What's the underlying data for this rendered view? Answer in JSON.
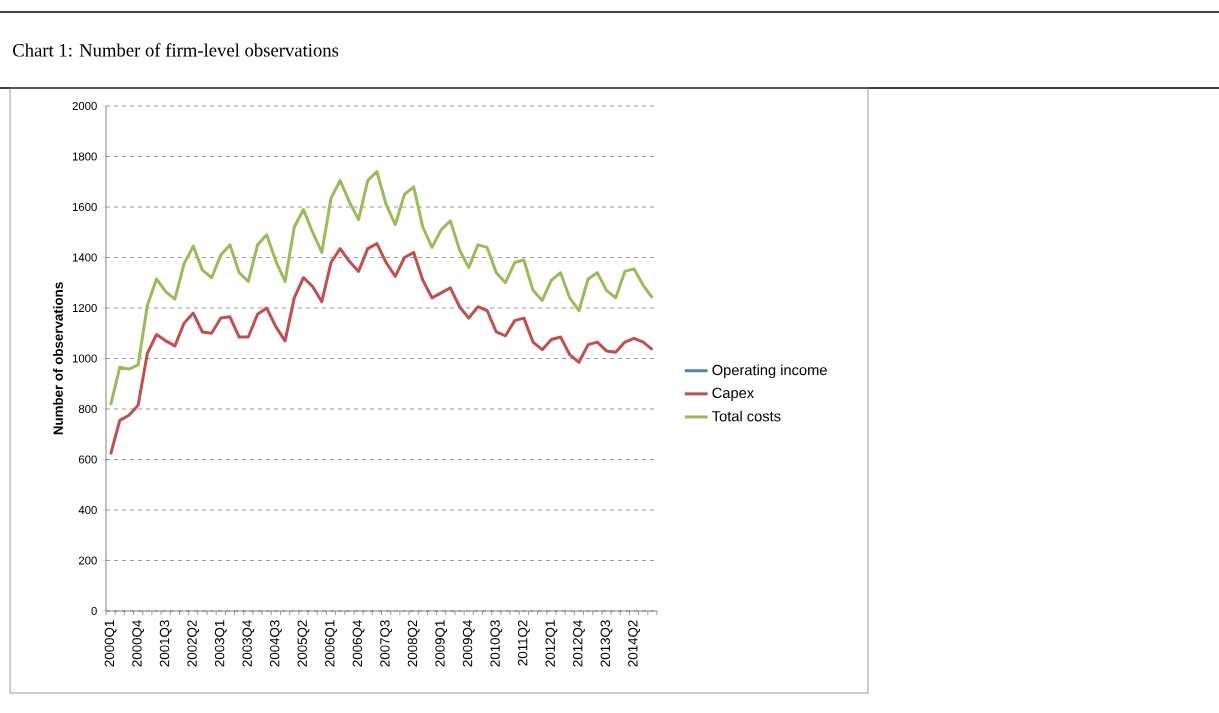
{
  "chart_data": {
    "type": "line",
    "title": "Chart 1: Number of firm-level observations",
    "ylabel": "Number of observations",
    "categories": [
      "2000Q1",
      null,
      null,
      "2000Q4",
      null,
      null,
      "2001Q3",
      null,
      null,
      "2002Q2",
      null,
      null,
      "2003Q1",
      null,
      null,
      "2003Q4",
      null,
      null,
      "2004Q3",
      null,
      null,
      "2005Q2",
      null,
      null,
      "2006Q1",
      null,
      null,
      "2006Q4",
      null,
      null,
      "2007Q3",
      null,
      null,
      "2008Q2",
      null,
      null,
      "2009Q1",
      null,
      null,
      "2009Q4",
      null,
      null,
      "2010Q3",
      null,
      null,
      "2011Q2",
      null,
      null,
      "2012Q1",
      null,
      null,
      "2012Q4",
      null,
      null,
      "2013Q3",
      null,
      null,
      "2014Q2",
      null,
      null
    ],
    "series": [
      {
        "name": "Operating income",
        "color": "#4f81bd",
        "values": [
          null,
          null,
          null,
          null,
          null,
          null,
          null,
          null,
          null,
          null,
          null,
          null,
          null,
          null,
          null,
          null,
          null,
          null,
          null,
          null,
          null,
          null,
          null,
          null,
          null,
          null,
          null,
          null,
          null,
          null,
          null,
          null,
          null,
          null,
          null,
          null,
          null,
          null,
          null,
          null,
          null,
          null,
          null,
          null,
          null,
          null,
          null,
          null,
          null,
          null,
          null,
          null,
          null,
          null,
          null,
          null,
          null,
          null,
          null,
          null
        ]
      },
      {
        "name": "Capex",
        "color": "#c0504d",
        "values": [
          620,
          755,
          775,
          815,
          1020,
          1095,
          1070,
          1050,
          1140,
          1180,
          1105,
          1100,
          1160,
          1165,
          1085,
          1085,
          1175,
          1200,
          1125,
          1070,
          1240,
          1320,
          1285,
          1225,
          1380,
          1435,
          1385,
          1345,
          1435,
          1455,
          1380,
          1325,
          1400,
          1420,
          1310,
          1240,
          1260,
          1280,
          1205,
          1160,
          1205,
          1190,
          1105,
          1090,
          1150,
          1160,
          1065,
          1035,
          1075,
          1085,
          1015,
          985,
          1055,
          1065,
          1030,
          1025,
          1065,
          1080,
          1065,
          1035
        ]
      },
      {
        "name": "Total costs",
        "color": "#9bbb59",
        "values": [
          815,
          965,
          958,
          975,
          1210,
          1315,
          1265,
          1235,
          1375,
          1445,
          1350,
          1320,
          1410,
          1450,
          1340,
          1305,
          1450,
          1490,
          1385,
          1305,
          1520,
          1590,
          1500,
          1420,
          1635,
          1705,
          1620,
          1550,
          1705,
          1740,
          1610,
          1530,
          1650,
          1680,
          1520,
          1440,
          1510,
          1545,
          1430,
          1360,
          1450,
          1440,
          1340,
          1300,
          1380,
          1390,
          1270,
          1230,
          1310,
          1340,
          1240,
          1190,
          1315,
          1340,
          1270,
          1240,
          1345,
          1355,
          1290,
          1240
        ]
      }
    ],
    "ylim": [
      0,
      2000
    ],
    "yticks": [
      0,
      200,
      400,
      600,
      800,
      1000,
      1200,
      1400,
      1600,
      1800,
      2000
    ],
    "grid": "y",
    "legend": "right",
    "marker": "none",
    "line_style": "solid"
  }
}
